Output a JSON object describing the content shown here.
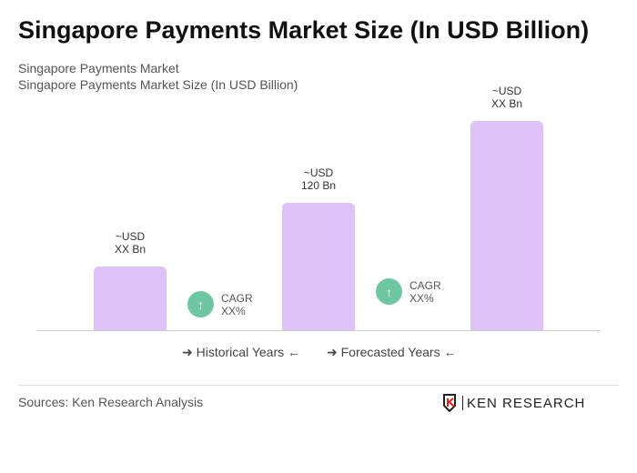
{
  "title": "Singapore Payments Market Size (In USD Billion)",
  "subtitle1": "Singapore Payments Market",
  "subtitle2": "Singapore Payments Market Size (In USD Billion)",
  "chart_data": {
    "type": "bar",
    "categories": [
      "",
      "",
      ""
    ],
    "values": [
      60,
      120,
      197
    ],
    "data_labels": [
      [
        "~USD",
        "XX Bn"
      ],
      [
        "~USD",
        "120 Bn"
      ],
      [
        "~USD",
        "XX Bn"
      ]
    ],
    "cagr": [
      {
        "label": "CAGR",
        "value": "XX%"
      },
      {
        "label": "CAGR",
        "value": "XX%"
      }
    ],
    "bar_color": "#dcc2f6",
    "cagr_color": "#6fc6a2"
  },
  "legend": {
    "historical": "Historical Years",
    "forecasted": "Forecasted Years"
  },
  "sources": "Sources: Ken Research Analysis",
  "logo_text": "KEN RESEARCH"
}
